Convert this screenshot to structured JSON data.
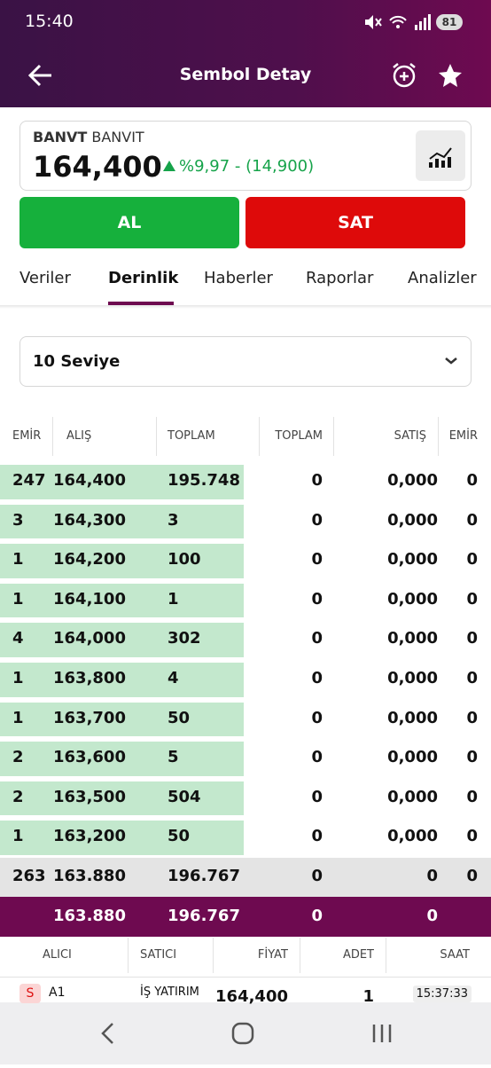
{
  "status_bar": {
    "time": "15:40",
    "battery": "81"
  },
  "header": {
    "title": "Sembol Detay"
  },
  "symbol": {
    "code": "BANVT",
    "name": "BANVIT",
    "price": "164,400",
    "change": "%9,97 - (14,900)"
  },
  "buttons": {
    "buy": "AL",
    "sell": "SAT"
  },
  "tabs": [
    "Veriler",
    "Derinlik",
    "Haberler",
    "Raporlar",
    "Analizler"
  ],
  "level_select": "10 Seviye",
  "depth_table": {
    "columns": [
      "EMİR",
      "ALIŞ",
      "TOPLAM",
      "TOPLAM",
      "SATIŞ",
      "EMİR"
    ],
    "rows": [
      [
        "247",
        "164,400",
        "195.748",
        "0",
        "0,000",
        "0"
      ],
      [
        "3",
        "164,300",
        "3",
        "0",
        "0,000",
        "0"
      ],
      [
        "1",
        "164,200",
        "100",
        "0",
        "0,000",
        "0"
      ],
      [
        "1",
        "164,100",
        "1",
        "0",
        "0,000",
        "0"
      ],
      [
        "4",
        "164,000",
        "302",
        "0",
        "0,000",
        "0"
      ],
      [
        "1",
        "163,800",
        "4",
        "0",
        "0,000",
        "0"
      ],
      [
        "1",
        "163,700",
        "50",
        "0",
        "0,000",
        "0"
      ],
      [
        "2",
        "163,600",
        "5",
        "0",
        "0,000",
        "0"
      ],
      [
        "2",
        "163,500",
        "504",
        "0",
        "0,000",
        "0"
      ],
      [
        "1",
        "163,200",
        "50",
        "0",
        "0,000",
        "0"
      ]
    ],
    "summary": [
      "263",
      "163.880",
      "196.767",
      "0",
      "0",
      "0"
    ],
    "total": [
      "163.880",
      "196.767",
      "0",
      "0"
    ]
  },
  "trades_table": {
    "columns": [
      "ALICI",
      "SATICI",
      "FİYAT",
      "ADET",
      "SAAT"
    ],
    "rows": [
      {
        "side": "S",
        "buyer": "A1",
        "seller": "İŞ YATIRIM",
        "price": "164,400",
        "quantity": "1",
        "time": "15:37:33"
      }
    ]
  }
}
